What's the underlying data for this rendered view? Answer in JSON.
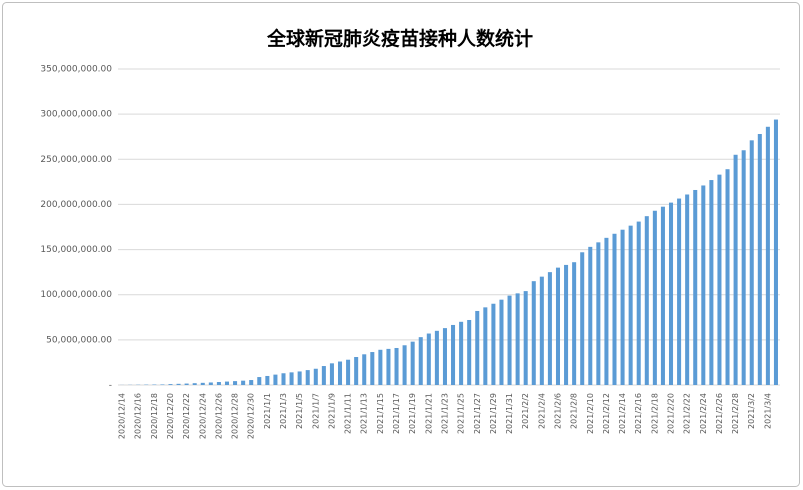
{
  "chart_data": {
    "type": "bar",
    "title": "全球新冠肺炎疫苗接种人数统计",
    "categories": [
      "2020/12/14",
      null,
      "2020/12/16",
      null,
      "2020/12/18",
      null,
      "2020/12/20",
      null,
      "2020/12/22",
      null,
      "2020/12/24",
      null,
      "2020/12/26",
      null,
      "2020/12/28",
      null,
      "2020/12/30",
      null,
      "2021/1/1",
      null,
      "2021/1/3",
      null,
      "2021/1/5",
      null,
      "2021/1/7",
      null,
      "2021/1/9",
      null,
      "2021/1/11",
      null,
      "2021/1/13",
      null,
      "2021/1/15",
      null,
      "2021/1/17",
      null,
      "2021/1/19",
      null,
      "2021/1/21",
      null,
      "2021/1/23",
      null,
      "2021/1/25",
      null,
      "2021/1/27",
      null,
      "2021/1/29",
      null,
      "2021/1/31",
      null,
      "2021/2/2",
      null,
      "2021/2/4",
      null,
      "2021/2/6",
      null,
      "2021/2/8",
      null,
      "2021/2/10",
      null,
      "2021/2/12",
      null,
      "2021/2/14",
      null,
      "2021/2/16",
      null,
      "2021/2/18",
      null,
      "2021/2/20",
      null,
      "2021/2/22",
      null,
      "2021/2/24",
      null,
      "2021/2/26",
      null,
      "2021/2/28",
      null,
      "2021/3/2",
      null,
      "2021/3/4",
      null
    ],
    "values": [
      100000,
      200000,
      300000,
      400000,
      500000,
      600000,
      1000000,
      1300000,
      1600000,
      2000000,
      2400000,
      2800000,
      3300000,
      3800000,
      4300000,
      4800000,
      5500000,
      8800000,
      10000000,
      11500000,
      13000000,
      14000000,
      15000000,
      16500000,
      18000000,
      21000000,
      24000000,
      26000000,
      28000000,
      31000000,
      34000000,
      36500000,
      39000000,
      40000000,
      41000000,
      44000000,
      48000000,
      53000000,
      57000000,
      60000000,
      63000000,
      66500000,
      70000000,
      72000000,
      82000000,
      86000000,
      90000000,
      94500000,
      99000000,
      101500000,
      104000000,
      115000000,
      120000000,
      125000000,
      130000000,
      133000000,
      136000000,
      147000000,
      153000000,
      158000000,
      163000000,
      167500000,
      172000000,
      176500000,
      181000000,
      187000000,
      193000000,
      197500000,
      202000000,
      206500000,
      211000000,
      216000000,
      221000000,
      227000000,
      233000000,
      239000000,
      255000000,
      260000000,
      271000000,
      278000000,
      286000000,
      294000000
    ],
    "color": "#5b9bd5",
    "ylim": [
      0,
      350000000
    ],
    "yticks": [
      {
        "value": 0,
        "label": "-"
      },
      {
        "value": 50000000,
        "label": "50,000,000.00"
      },
      {
        "value": 100000000,
        "label": "100,000,000.00"
      },
      {
        "value": 150000000,
        "label": "150,000,000.00"
      },
      {
        "value": 200000000,
        "label": "200,000,000.00"
      },
      {
        "value": 250000000,
        "label": "250,000,000.00"
      },
      {
        "value": 300000000,
        "label": "300,000,000.00"
      },
      {
        "value": 350000000,
        "label": "350,000,000.00"
      }
    ],
    "grid": true
  }
}
